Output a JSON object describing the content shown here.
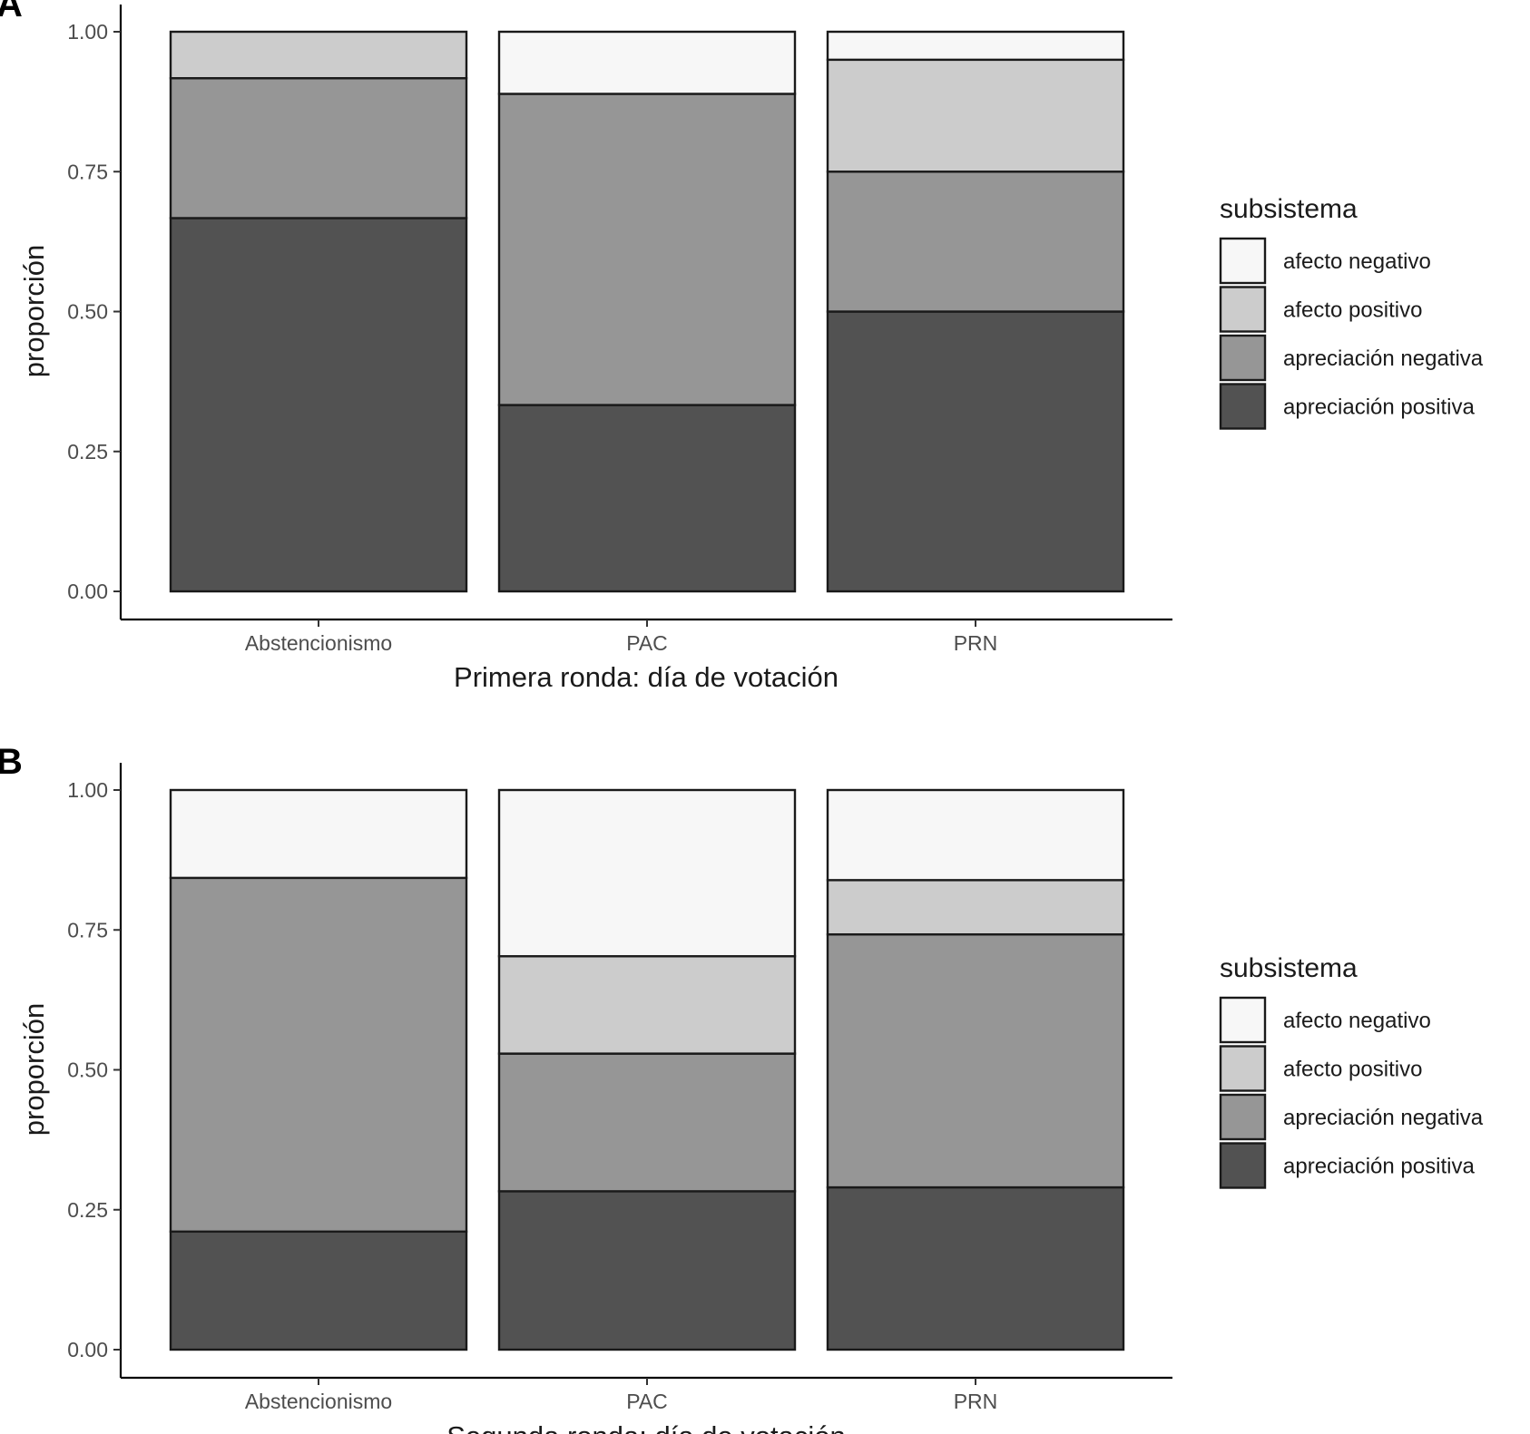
{
  "chart_data": [
    {
      "panel": "A",
      "type": "bar",
      "stacked": true,
      "title": "",
      "xlabel": "Primera ronda: día de votación",
      "ylabel": "proporción",
      "ylim": [
        0,
        1
      ],
      "yticks": [
        "0.00",
        "0.25",
        "0.50",
        "0.75",
        "1.00"
      ],
      "categories": [
        "Abstencionismo",
        "PAC",
        "PRN"
      ],
      "series": [
        {
          "name": "apreciación positiva",
          "values": [
            0.667,
            0.333,
            0.5
          ]
        },
        {
          "name": "apreciación negativa",
          "values": [
            0.25,
            0.556,
            0.25
          ]
        },
        {
          "name": "afecto positivo",
          "values": [
            0.083,
            0.0,
            0.2
          ]
        },
        {
          "name": "afecto negativo",
          "values": [
            0.0,
            0.111,
            0.05
          ]
        }
      ],
      "legend": {
        "title": "subsistema",
        "position": "right"
      }
    },
    {
      "panel": "B",
      "type": "bar",
      "stacked": true,
      "title": "",
      "xlabel": "Segunda ronda: día de votación",
      "ylabel": "proporción",
      "ylim": [
        0,
        1
      ],
      "yticks": [
        "0.00",
        "0.25",
        "0.50",
        "0.75",
        "1.00"
      ],
      "categories": [
        "Abstencionismo",
        "PAC",
        "PRN"
      ],
      "series": [
        {
          "name": "apreciación positiva",
          "values": [
            0.211,
            0.283,
            0.29
          ]
        },
        {
          "name": "apreciación negativa",
          "values": [
            0.632,
            0.246,
            0.452
          ]
        },
        {
          "name": "afecto positivo",
          "values": [
            0.0,
            0.174,
            0.097
          ]
        },
        {
          "name": "afecto negativo",
          "values": [
            0.157,
            0.297,
            0.161
          ]
        }
      ],
      "legend": {
        "title": "subsistema",
        "position": "right"
      }
    }
  ],
  "legend": {
    "title": "subsistema",
    "items": [
      {
        "label": "afecto negativo",
        "color": "#f7f7f7"
      },
      {
        "label": "afecto positivo",
        "color": "#cccccc"
      },
      {
        "label": "apreciación negativa",
        "color": "#969696"
      },
      {
        "label": "apreciación positiva",
        "color": "#525252"
      }
    ]
  },
  "series_colors": {
    "apreciación positiva": "#525252",
    "apreciación negativa": "#969696",
    "afecto positivo": "#cccccc",
    "afecto negativo": "#f7f7f7"
  },
  "outline_color": "#1a1a1a"
}
